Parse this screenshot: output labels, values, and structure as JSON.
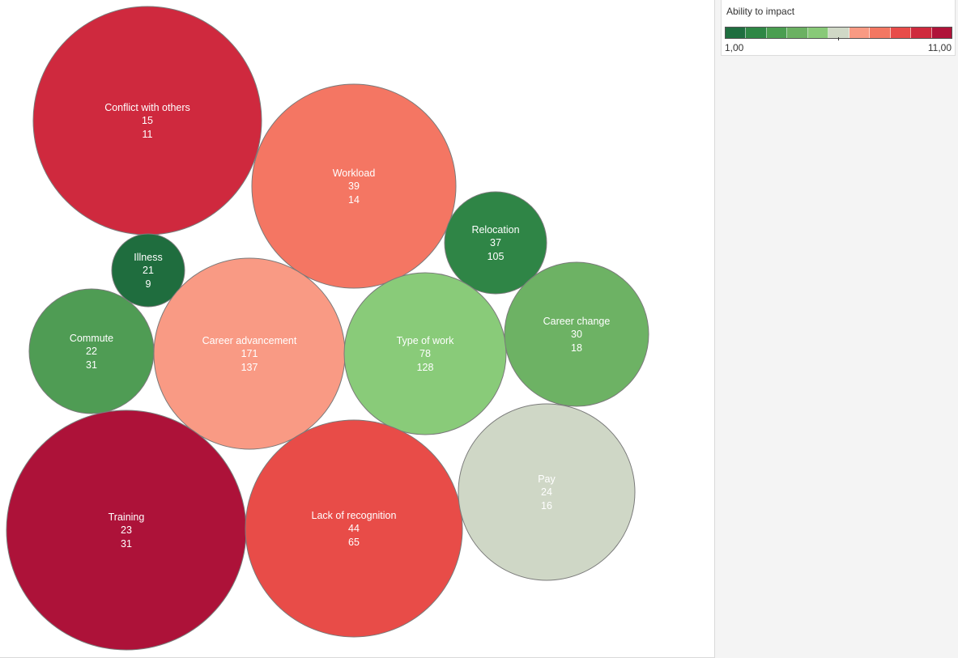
{
  "legend": {
    "title": "Ability to impact",
    "min_label": "1,00",
    "max_label": "11,00",
    "ramp": [
      "#1e6e3f",
      "#2e8745",
      "#4a9e50",
      "#6bb162",
      "#88c978",
      "#d0d8c6",
      "#f89a83",
      "#f37762",
      "#e84c49",
      "#cf2a3d",
      "#b01339"
    ]
  },
  "chart_data": {
    "type": "bubble",
    "title": "",
    "color_field": "Ability to impact",
    "color_range": [
      1,
      11
    ],
    "bubbles": [
      {
        "category": "Conflict with others",
        "value1": "15",
        "value2": "11",
        "color": "#cf293e"
      },
      {
        "category": "Workload",
        "value1": "39",
        "value2": "14",
        "color": "#f47663"
      },
      {
        "category": "Relocation",
        "value1": "37",
        "value2": "105",
        "color": "#2f8546"
      },
      {
        "category": "Illness",
        "value1": "21",
        "value2": "9",
        "color": "#1f6d3e"
      },
      {
        "category": "Commute",
        "value1": "22",
        "value2": "31",
        "color": "#4f9c54"
      },
      {
        "category": "Career advancement",
        "value1": "171",
        "value2": "137",
        "color": "#f99a84"
      },
      {
        "category": "Type of work",
        "value1": "78",
        "value2": "128",
        "color": "#89cb79"
      },
      {
        "category": "Career change",
        "value1": "30",
        "value2": "18",
        "color": "#6db264"
      },
      {
        "category": "Training",
        "value1": "23",
        "value2": "31",
        "color": "#ad1239"
      },
      {
        "category": "Lack of recognition",
        "value1": "44",
        "value2": "65",
        "color": "#e84c48"
      },
      {
        "category": "Pay",
        "value1": "24",
        "value2": "16",
        "color": "#cfd7c6"
      }
    ]
  }
}
